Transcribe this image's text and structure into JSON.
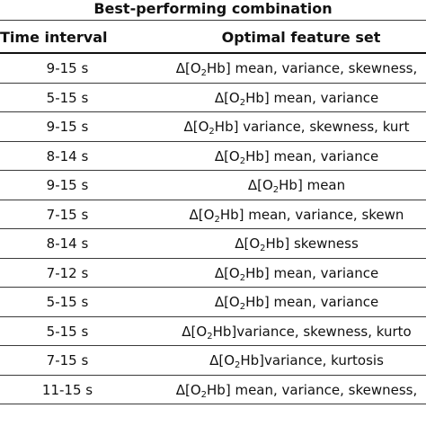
{
  "table": {
    "group_title": "Best-performing combination",
    "headers": {
      "time_interval": "Time interval",
      "feature_set": "Optimal feature set"
    },
    "feature_prefix": "Δ[O",
    "feature_subscript": "2",
    "feature_suffix": "Hb]",
    "rows": [
      {
        "time": "9-15 s",
        "features": " mean, variance, skewness,"
      },
      {
        "time": "5-15 s",
        "features": " mean, variance"
      },
      {
        "time": "9-15 s",
        "features": " variance, skewness, kurt"
      },
      {
        "time": "8-14 s",
        "features": " mean, variance"
      },
      {
        "time": "9-15 s",
        "features": " mean"
      },
      {
        "time": "7-15 s",
        "features": " mean, variance, skewn"
      },
      {
        "time": "8-14 s",
        "features": " skewness"
      },
      {
        "time": "7-12 s",
        "features": " mean, variance"
      },
      {
        "time": "5-15 s",
        "features": " mean, variance"
      },
      {
        "time": "5-15 s",
        "features": "variance, skewness, kurto"
      },
      {
        "time": "7-15 s",
        "features": "variance, kurtosis"
      },
      {
        "time": "11-15 s",
        "features": " mean, variance, skewness,"
      }
    ]
  }
}
